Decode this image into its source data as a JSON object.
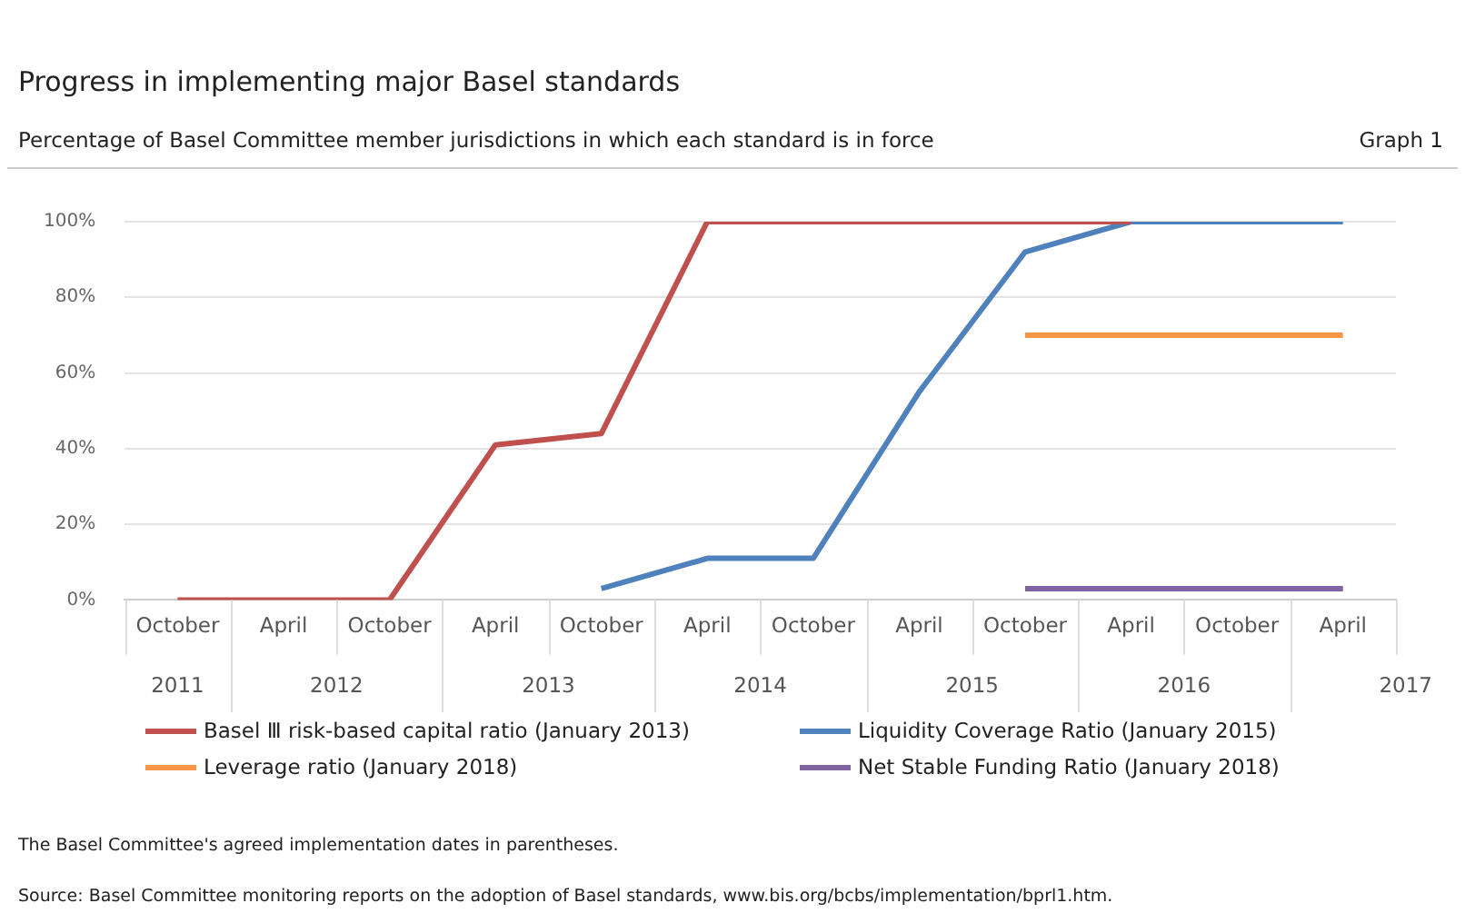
{
  "chart_data": {
    "type": "line",
    "title": "Progress in implementing major Basel standards",
    "subtitle": "Percentage of Basel Committee member jurisdictions in which each standard is in force",
    "annotations": [
      "Graph 1",
      "2011",
      "2012",
      "2013",
      "2014",
      "2015",
      "2016",
      "2017",
      "The Basel Committee's agreed implementation dates in parentheses.",
      "Source: Basel Committee monitoring reports on the adoption of Basel standards, www.bis.org/bcbs/implementation/bprl1.htm."
    ],
    "x": [
      "2011-10",
      "2012-04",
      "2012-10",
      "2013-04",
      "2013-10",
      "2014-04",
      "2014-10",
      "2015-04",
      "2015-10",
      "2016-04",
      "2016-10",
      "2017-04"
    ],
    "xlim": [
      "2011-07",
      "2017-07"
    ],
    "xticks": [
      {
        "value": "2011-10",
        "label": "October"
      },
      {
        "value": "2012-04",
        "label": "April"
      },
      {
        "value": "2012-10",
        "label": "October"
      },
      {
        "value": "2013-04",
        "label": "April"
      },
      {
        "value": "2013-10",
        "label": "October"
      },
      {
        "value": "2014-04",
        "label": "April"
      },
      {
        "value": "2014-10",
        "label": "October"
      },
      {
        "value": "2015-04",
        "label": "April"
      },
      {
        "value": "2015-10",
        "label": "October"
      },
      {
        "value": "2016-04",
        "label": "April"
      },
      {
        "value": "2016-10",
        "label": "October"
      },
      {
        "value": "2017-04",
        "label": "April"
      }
    ],
    "ylim": [
      0,
      100
    ],
    "yticks": [
      {
        "value": 0,
        "label": "0%"
      },
      {
        "value": 20,
        "label": "20%"
      },
      {
        "value": 40,
        "label": "40%"
      },
      {
        "value": 60,
        "label": "60%"
      },
      {
        "value": 80,
        "label": "80%"
      },
      {
        "value": 100,
        "label": "100%"
      }
    ],
    "grid": "y",
    "legend": "bottom",
    "marker": "none",
    "line_style": "solid",
    "series": [
      {
        "name": "Basel Ⅲ risk-based capital ratio (January 2013)",
        "color": "#c0504d",
        "values": [
          0,
          0,
          0,
          41,
          44,
          100,
          100,
          100,
          100,
          100,
          null,
          null
        ]
      },
      {
        "name": "Liquidity Coverage Ratio (January 2015)",
        "color": "#4f81bd",
        "values": [
          null,
          null,
          null,
          null,
          3,
          11,
          11,
          55,
          92,
          100,
          100,
          100
        ]
      },
      {
        "name": "Leverage ratio (January 2018)",
        "color": "#f79646",
        "values": [
          null,
          null,
          null,
          null,
          null,
          null,
          null,
          null,
          70,
          70,
          70,
          70
        ]
      },
      {
        "name": "Net Stable Funding Ratio (January 2018)",
        "color": "#8064a2",
        "values": [
          null,
          null,
          null,
          null,
          null,
          null,
          null,
          null,
          3,
          3,
          3,
          3
        ]
      }
    ]
  }
}
